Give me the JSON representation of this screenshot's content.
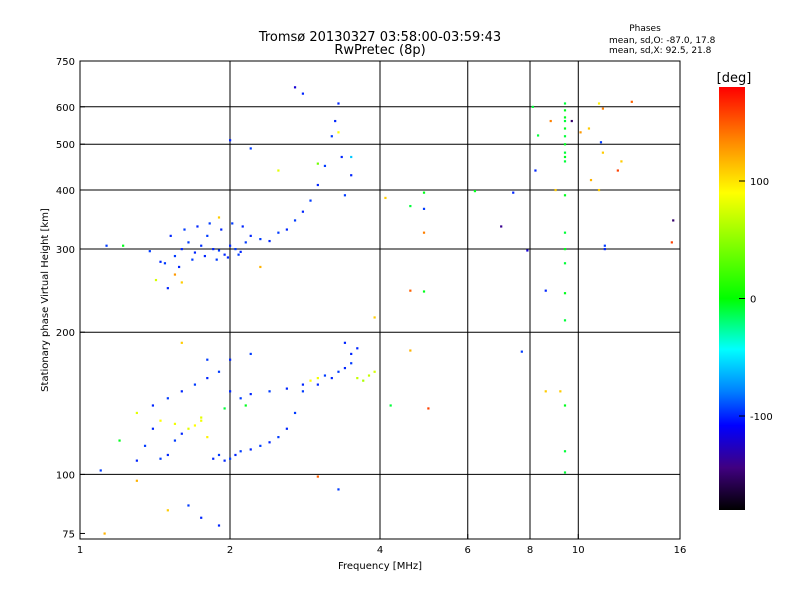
{
  "chart_data": {
    "type": "scatter",
    "title": "Tromsø 20130327 03:58:00-03:59:43",
    "subtitle": "RwPretec (8p)",
    "xlabel": "Frequency [MHz]",
    "ylabel": "Stationary phase Virtual Height [km]",
    "x_scale": "log",
    "y_scale": "log",
    "xlim": [
      1,
      16
    ],
    "ylim": [
      73,
      750
    ],
    "x_ticks": [
      1,
      2,
      4,
      6,
      8,
      10,
      16
    ],
    "y_ticks": [
      75,
      100,
      200,
      300,
      400,
      500,
      600,
      750
    ],
    "grid_x": [
      2,
      4,
      6,
      8,
      10
    ],
    "grid_y": [
      100,
      200,
      300,
      400,
      500,
      600
    ],
    "grid": true,
    "phases_header": "Phases",
    "phases_lines": [
      "mean, sd,O: -87.0, 17.8",
      "mean, sd,X:  92.5, 21.8"
    ],
    "colorbar": {
      "label": "[deg]",
      "range": [
        -180,
        180
      ],
      "ticks": [
        100,
        0,
        -100
      ],
      "colors": [
        "#ff0000",
        "#ff8000",
        "#ffff00",
        "#00ff00",
        "#00ffff",
        "#0080ff",
        "#0000ff",
        "#400080",
        "#000000"
      ]
    },
    "series": [
      {
        "description_note": "",
        "points": [
          [
            1.13,
            305,
            -95
          ],
          [
            1.22,
            305,
            -5
          ],
          [
            1.38,
            297,
            -95
          ],
          [
            1.42,
            258,
            75
          ],
          [
            1.45,
            282,
            -100
          ],
          [
            1.5,
            248,
            -100
          ],
          [
            1.55,
            290,
            -95
          ],
          [
            1.6,
            300,
            -100
          ],
          [
            1.65,
            310,
            -95
          ],
          [
            1.7,
            295,
            -100
          ],
          [
            1.75,
            305,
            -98
          ],
          [
            1.8,
            320,
            -95
          ],
          [
            1.85,
            300,
            -100
          ],
          [
            1.9,
            298,
            -95
          ],
          [
            1.95,
            292,
            -100
          ],
          [
            2.0,
            305,
            -100
          ],
          [
            2.05,
            300,
            -95
          ],
          [
            2.1,
            296,
            -100
          ],
          [
            2.15,
            310,
            -95
          ],
          [
            2.2,
            320,
            -100
          ],
          [
            2.3,
            315,
            -95
          ],
          [
            2.4,
            312,
            -100
          ],
          [
            2.5,
            325,
            -95
          ],
          [
            2.6,
            330,
            -100
          ],
          [
            2.7,
            345,
            -95
          ],
          [
            2.8,
            360,
            -100
          ],
          [
            2.9,
            380,
            -95
          ],
          [
            3.0,
            410,
            -100
          ],
          [
            3.1,
            450,
            -95
          ],
          [
            3.2,
            520,
            -95
          ],
          [
            3.25,
            560,
            -100
          ],
          [
            3.3,
            610,
            -100
          ],
          [
            3.35,
            470,
            -100
          ],
          [
            3.4,
            390,
            -95
          ],
          [
            3.5,
            430,
            -100
          ],
          [
            1.48,
            280,
            -95
          ],
          [
            1.58,
            275,
            -100
          ],
          [
            1.68,
            285,
            -95
          ],
          [
            1.78,
            290,
            -100
          ],
          [
            1.88,
            285,
            -95
          ],
          [
            1.98,
            288,
            -100
          ],
          [
            2.08,
            292,
            -95
          ],
          [
            1.52,
            320,
            -100
          ],
          [
            1.62,
            330,
            -95
          ],
          [
            1.72,
            335,
            -100
          ],
          [
            1.82,
            340,
            -95
          ],
          [
            1.92,
            330,
            -100
          ],
          [
            2.02,
            340,
            -95
          ],
          [
            2.12,
            335,
            -100
          ],
          [
            2.0,
            510,
            -100
          ],
          [
            2.2,
            490,
            -95
          ],
          [
            2.8,
            640,
            -100
          ],
          [
            3.5,
            470,
            -60
          ],
          [
            3.3,
            530,
            90
          ],
          [
            3.0,
            455,
            40
          ],
          [
            2.5,
            440,
            80
          ],
          [
            2.3,
            275,
            120
          ],
          [
            1.9,
            350,
            110
          ],
          [
            1.55,
            265,
            130
          ],
          [
            1.6,
            255,
            110
          ],
          [
            1.1,
            102,
            -95
          ],
          [
            1.2,
            118,
            -5
          ],
          [
            1.3,
            107,
            -100
          ],
          [
            1.35,
            115,
            -95
          ],
          [
            1.4,
            125,
            -100
          ],
          [
            1.45,
            108,
            -95
          ],
          [
            1.5,
            110,
            -100
          ],
          [
            1.55,
            118,
            -95
          ],
          [
            1.6,
            122,
            -100
          ],
          [
            1.65,
            125,
            80
          ],
          [
            1.7,
            127,
            90
          ],
          [
            1.75,
            130,
            85
          ],
          [
            1.8,
            120,
            95
          ],
          [
            1.85,
            108,
            -100
          ],
          [
            1.9,
            110,
            -95
          ],
          [
            1.95,
            107,
            -100
          ],
          [
            2.0,
            108,
            -95
          ],
          [
            2.05,
            110,
            -100
          ],
          [
            2.1,
            112,
            -95
          ],
          [
            2.2,
            113,
            -100
          ],
          [
            2.3,
            115,
            -95
          ],
          [
            2.4,
            117,
            -100
          ],
          [
            2.5,
            120,
            -95
          ],
          [
            2.6,
            125,
            -100
          ],
          [
            2.7,
            135,
            -95
          ],
          [
            2.8,
            155,
            -100
          ],
          [
            2.9,
            158,
            90
          ],
          [
            3.0,
            160,
            85
          ],
          [
            3.1,
            162,
            -95
          ],
          [
            3.2,
            160,
            -100
          ],
          [
            3.3,
            165,
            -95
          ],
          [
            3.4,
            168,
            -100
          ],
          [
            3.5,
            172,
            -95
          ],
          [
            3.6,
            160,
            70
          ],
          [
            3.7,
            158,
            60
          ],
          [
            3.8,
            162,
            70
          ],
          [
            3.9,
            165,
            75
          ],
          [
            1.4,
            140,
            -100
          ],
          [
            1.5,
            145,
            -95
          ],
          [
            1.6,
            150,
            -100
          ],
          [
            1.7,
            155,
            -95
          ],
          [
            1.8,
            160,
            -100
          ],
          [
            1.9,
            165,
            -95
          ],
          [
            2.0,
            150,
            -100
          ],
          [
            2.1,
            145,
            -95
          ],
          [
            2.2,
            148,
            -100
          ],
          [
            2.4,
            150,
            -95
          ],
          [
            2.6,
            152,
            -100
          ],
          [
            2.8,
            150,
            -95
          ],
          [
            3.0,
            155,
            -100
          ],
          [
            1.3,
            135,
            80
          ],
          [
            1.45,
            130,
            90
          ],
          [
            1.55,
            128,
            85
          ],
          [
            1.75,
            132,
            80
          ],
          [
            1.95,
            138,
            -10
          ],
          [
            2.15,
            140,
            -5
          ],
          [
            1.6,
            190,
            110
          ],
          [
            1.8,
            175,
            -95
          ],
          [
            2.0,
            175,
            -100
          ],
          [
            2.2,
            180,
            -95
          ],
          [
            3.5,
            180,
            -100
          ],
          [
            3.6,
            185,
            -100
          ],
          [
            3.4,
            190,
            -100
          ],
          [
            1.12,
            75,
            120
          ],
          [
            1.3,
            97,
            120
          ],
          [
            1.5,
            84,
            110
          ],
          [
            1.65,
            86,
            -95
          ],
          [
            1.75,
            81,
            -100
          ],
          [
            1.9,
            78,
            -100
          ],
          [
            3.3,
            93,
            -95
          ],
          [
            3.0,
            99,
            150
          ],
          [
            4.1,
            385,
            110
          ],
          [
            4.6,
            370,
            -10
          ],
          [
            4.9,
            395,
            -5
          ],
          [
            4.9,
            325,
            140
          ],
          [
            4.9,
            244,
            -5
          ],
          [
            4.6,
            245,
            150
          ],
          [
            4.9,
            365,
            -95
          ],
          [
            4.6,
            183,
            120
          ],
          [
            5.0,
            138,
            160
          ],
          [
            4.2,
            140,
            -10
          ],
          [
            3.9,
            215,
            110
          ],
          [
            6.2,
            398,
            -5
          ],
          [
            7.0,
            335,
            -140
          ],
          [
            7.4,
            395,
            -100
          ],
          [
            7.9,
            298,
            -120
          ],
          [
            7.7,
            182,
            -95
          ],
          [
            8.2,
            440,
            -100
          ],
          [
            8.6,
            245,
            -100
          ],
          [
            8.3,
            522,
            -10
          ],
          [
            8.1,
            600,
            -10
          ],
          [
            8.6,
            150,
            110
          ],
          [
            9.4,
            610,
            -10
          ],
          [
            9.4,
            590,
            -5
          ],
          [
            9.4,
            570,
            -5
          ],
          [
            9.4,
            560,
            -10
          ],
          [
            9.4,
            540,
            -5
          ],
          [
            9.4,
            520,
            -10
          ],
          [
            9.4,
            500,
            -5
          ],
          [
            9.4,
            480,
            -10
          ],
          [
            9.4,
            470,
            -5
          ],
          [
            9.4,
            460,
            -10
          ],
          [
            9.4,
            390,
            -5
          ],
          [
            9.4,
            325,
            -10
          ],
          [
            9.4,
            300,
            -5
          ],
          [
            9.4,
            280,
            -10
          ],
          [
            9.4,
            242,
            -5
          ],
          [
            9.4,
            212,
            -10
          ],
          [
            9.4,
            140,
            -5
          ],
          [
            9.4,
            112,
            -10
          ],
          [
            9.4,
            101,
            -10
          ],
          [
            9.7,
            560,
            -150
          ],
          [
            10.5,
            540,
            110
          ],
          [
            10.6,
            420,
            120
          ],
          [
            11.0,
            610,
            95
          ],
          [
            11.2,
            595,
            140
          ],
          [
            11.1,
            505,
            -95
          ],
          [
            11.2,
            480,
            110
          ],
          [
            11.3,
            300,
            -100
          ],
          [
            11.3,
            305,
            -95
          ],
          [
            11.0,
            400,
            110
          ],
          [
            12.8,
            615,
            150
          ],
          [
            12.2,
            460,
            110
          ],
          [
            12.0,
            440,
            160
          ],
          [
            15.5,
            345,
            -150
          ],
          [
            15.4,
            310,
            160
          ],
          [
            9.0,
            400,
            110
          ],
          [
            9.2,
            150,
            110
          ],
          [
            8.8,
            560,
            140
          ],
          [
            10.1,
            530,
            130
          ],
          [
            2.7,
            660,
            -120
          ]
        ]
      }
    ]
  }
}
